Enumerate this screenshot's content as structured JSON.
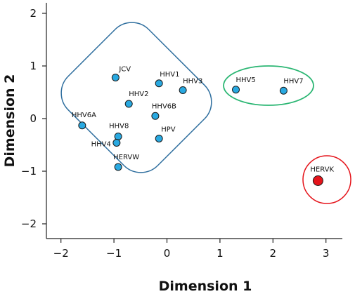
{
  "chart_data": {
    "type": "scatter",
    "title": "",
    "xlabel": "Dimension 1",
    "ylabel": "Dimension 2",
    "xlim": [
      -2.3,
      3.2
    ],
    "ylim": [
      -2.25,
      2.25
    ],
    "xticks": [
      -2,
      -1,
      0,
      1,
      2,
      3
    ],
    "yticks": [
      -2,
      -1,
      0,
      1,
      2
    ],
    "grid": false,
    "legend": "none",
    "points": [
      {
        "label": "JCV",
        "x": -0.97,
        "y": 0.78,
        "color": "#29a9e1"
      },
      {
        "label": "HHV1",
        "x": -0.15,
        "y": 0.67,
        "color": "#29a9e1"
      },
      {
        "label": "HHV3",
        "x": 0.3,
        "y": 0.54,
        "color": "#29a9e1"
      },
      {
        "label": "HHV2",
        "x": -0.72,
        "y": 0.28,
        "color": "#29a9e1"
      },
      {
        "label": "HHV6B",
        "x": -0.22,
        "y": 0.05,
        "color": "#29a9e1"
      },
      {
        "label": "HHV6A",
        "x": -1.6,
        "y": -0.13,
        "color": "#29a9e1"
      },
      {
        "label": "HHV8",
        "x": -0.92,
        "y": -0.34,
        "color": "#29a9e1"
      },
      {
        "label": "HHV4",
        "x": -0.95,
        "y": -0.46,
        "color": "#29a9e1"
      },
      {
        "label": "HPV",
        "x": -0.15,
        "y": -0.38,
        "color": "#29a9e1"
      },
      {
        "label": "HERVW",
        "x": -0.92,
        "y": -0.92,
        "color": "#29a9e1"
      },
      {
        "label": "HHV5",
        "x": 1.3,
        "y": 0.55,
        "color": "#29a9e1"
      },
      {
        "label": "HHV7",
        "x": 2.2,
        "y": 0.53,
        "color": "#29a9e1"
      },
      {
        "label": "HERVK",
        "x": 2.85,
        "y": -1.18,
        "color": "#e5141b"
      }
    ],
    "clusters": [
      {
        "members": [
          "JCV",
          "HHV1",
          "HHV3",
          "HHV2",
          "HHV6B",
          "HHV6A",
          "HHV8",
          "HHV4",
          "HPV",
          "HERVW"
        ],
        "color": "#2e6e9e"
      },
      {
        "members": [
          "HHV5",
          "HHV7"
        ],
        "color": "#2bb673"
      },
      {
        "members": [
          "HERVK"
        ],
        "color": "#e5141b"
      }
    ]
  }
}
